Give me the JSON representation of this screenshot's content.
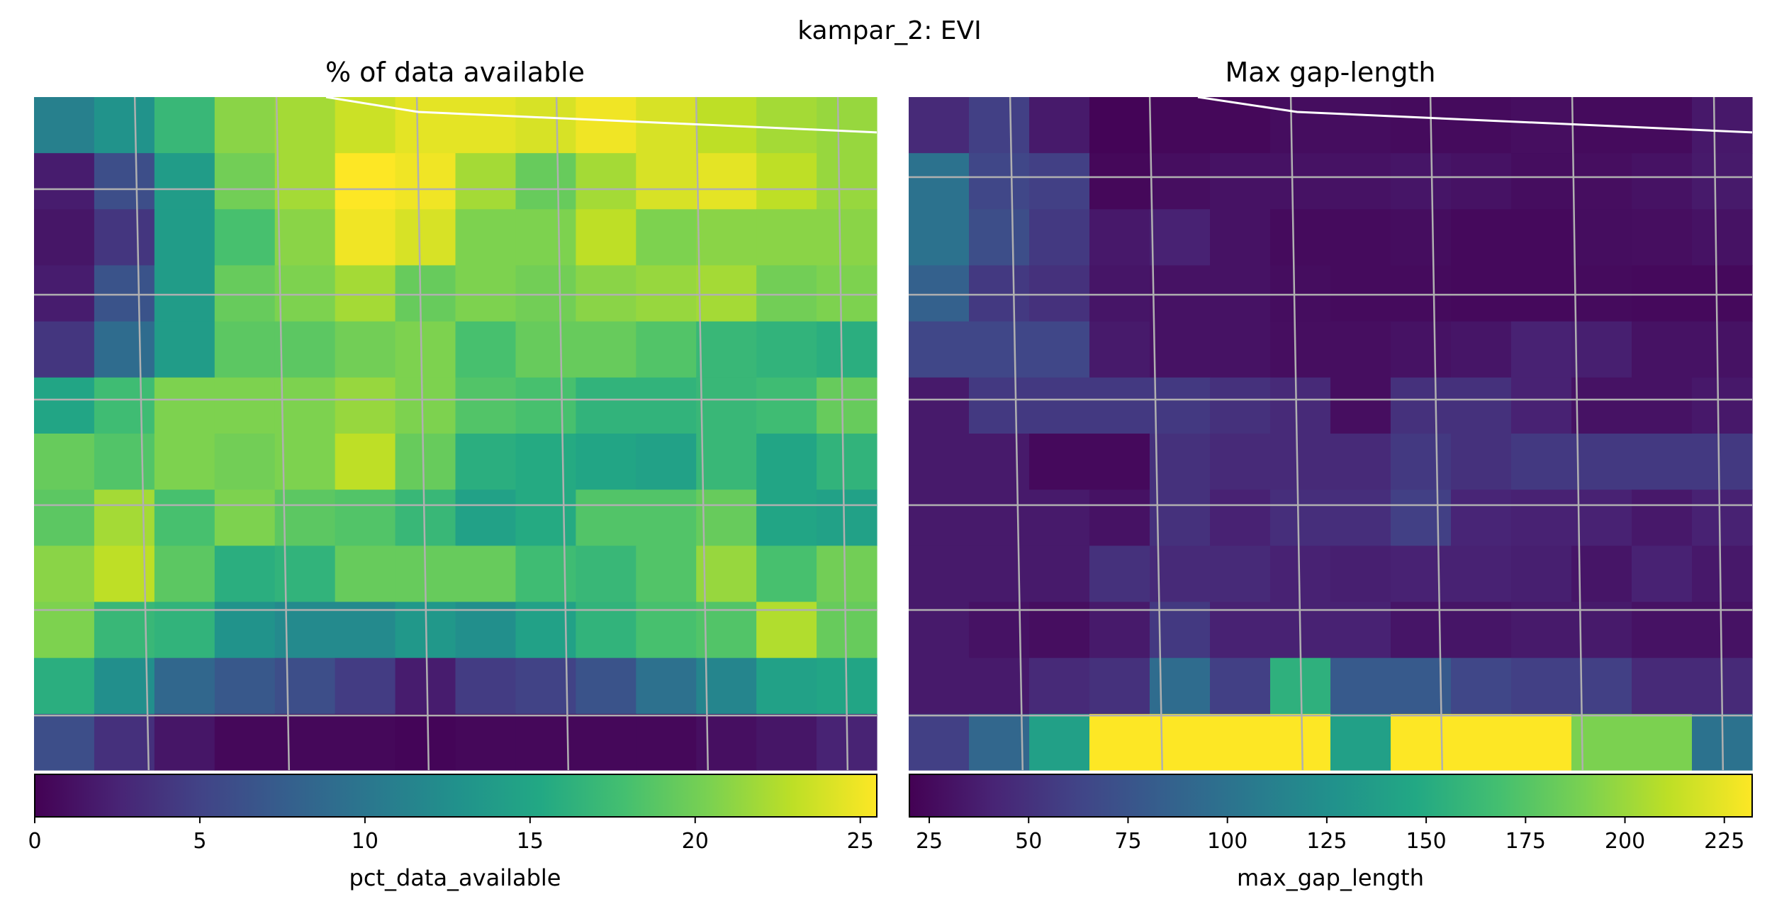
{
  "figure": {
    "title": "kampar_2: EVI"
  },
  "chart_data": [
    {
      "type": "heatmap",
      "title": "% of data available",
      "colorbar_label": "pct_data_available",
      "colormap": "viridis",
      "vmin": 0,
      "vmax": 25.5,
      "ticks": [
        0,
        5,
        10,
        15,
        20,
        25
      ],
      "tick_labels": [
        "0",
        "5",
        "10",
        "15",
        "20",
        "25"
      ],
      "rows": 12,
      "cols": 14,
      "values": [
        [
          11,
          13,
          17,
          21,
          22,
          23.5,
          24.5,
          24.5,
          24,
          25,
          24,
          23,
          22,
          21.5
        ],
        [
          2,
          6,
          14,
          20,
          22,
          25.5,
          25,
          22,
          19.5,
          22,
          24,
          24.5,
          23,
          21.5
        ],
        [
          1.5,
          4,
          14,
          18,
          21,
          25,
          24,
          20.5,
          20.5,
          23,
          20.5,
          21,
          21,
          21
        ],
        [
          2,
          6.5,
          14,
          19.5,
          20.5,
          22,
          19.5,
          20.5,
          20,
          21,
          21.5,
          22,
          20,
          20.5
        ],
        [
          4,
          9,
          14,
          19,
          19,
          20,
          20.5,
          18,
          19.5,
          19.5,
          18.5,
          17,
          16.5,
          16
        ],
        [
          15,
          17.5,
          20.5,
          20.5,
          20.5,
          21.5,
          20.5,
          18.5,
          18,
          16.5,
          16.5,
          17,
          17.5,
          19.5
        ],
        [
          19.5,
          18.5,
          20.5,
          20,
          20.5,
          23,
          19.5,
          16,
          15.5,
          15,
          14.5,
          17,
          15,
          16.5
        ],
        [
          19,
          22,
          18,
          20.5,
          19,
          18.5,
          17,
          14.5,
          15.5,
          18.5,
          18.5,
          19.5,
          15,
          14.5
        ],
        [
          21,
          23,
          19,
          16,
          16.5,
          19.5,
          19.5,
          19.5,
          17.5,
          17,
          18.5,
          21.5,
          18,
          20
        ],
        [
          20.5,
          17,
          16.5,
          13,
          12,
          12,
          13.5,
          12.5,
          14.5,
          16.5,
          18,
          18.5,
          22.5,
          19.5
        ],
        [
          16,
          12.5,
          8.5,
          7,
          6,
          4.5,
          2,
          4.5,
          5,
          6.5,
          9.5,
          11.5,
          14.5,
          15
        ],
        [
          6,
          3.5,
          1.5,
          0.5,
          0.5,
          0.5,
          0.3,
          0.5,
          0.5,
          0.5,
          0.5,
          1,
          1.5,
          2.5
        ]
      ]
    },
    {
      "type": "heatmap",
      "title": "Max gap-length",
      "colorbar_label": "max_gap_length",
      "colormap": "viridis",
      "vmin": 20,
      "vmax": 232,
      "ticks": [
        25,
        50,
        75,
        100,
        125,
        150,
        175,
        200,
        225
      ],
      "tick_labels": [
        "25",
        "50",
        "75",
        "100",
        "125",
        "150",
        "175",
        "200",
        "225"
      ],
      "rows": 12,
      "cols": 14,
      "values": [
        [
          45,
          60,
          35,
          22,
          24,
          24,
          27,
          27,
          26,
          26,
          28,
          26,
          26,
          34
        ],
        [
          100,
          65,
          60,
          24,
          28,
          30,
          30,
          30,
          32,
          30,
          27,
          28,
          30,
          35
        ],
        [
          100,
          70,
          55,
          34,
          40,
          30,
          26,
          26,
          27,
          25,
          25,
          27,
          28,
          30
        ],
        [
          85,
          55,
          50,
          32,
          30,
          30,
          27,
          26,
          26,
          25,
          25,
          26,
          25,
          25
        ],
        [
          65,
          65,
          65,
          35,
          30,
          30,
          28,
          28,
          30,
          32,
          40,
          38,
          30,
          30
        ],
        [
          35,
          55,
          55,
          55,
          55,
          50,
          45,
          28,
          50,
          50,
          40,
          30,
          30,
          34
        ],
        [
          35,
          35,
          25,
          25,
          50,
          45,
          45,
          45,
          55,
          50,
          55,
          55,
          55,
          55
        ],
        [
          35,
          35,
          35,
          30,
          50,
          40,
          48,
          48,
          60,
          42,
          40,
          40,
          34,
          40
        ],
        [
          35,
          35,
          35,
          50,
          45,
          45,
          40,
          38,
          40,
          40,
          38,
          32,
          40,
          34
        ],
        [
          35,
          30,
          28,
          35,
          55,
          40,
          40,
          40,
          32,
          32,
          35,
          35,
          30,
          30
        ],
        [
          35,
          35,
          45,
          50,
          95,
          60,
          155,
          80,
          80,
          65,
          60,
          60,
          45,
          45
        ],
        [
          60,
          90,
          140,
          232,
          232,
          232,
          232,
          140,
          232,
          232,
          232,
          190,
          190,
          100
        ]
      ]
    }
  ]
}
